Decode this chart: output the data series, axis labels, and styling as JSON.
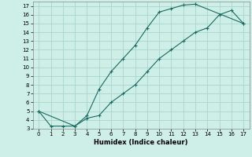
{
  "xlabel": "Humidex (Indice chaleur)",
  "background_color": "#ceeee8",
  "grid_color": "#aad4cc",
  "line_color": "#1a6b60",
  "xlim": [
    -0.5,
    17.5
  ],
  "ylim": [
    3,
    17.5
  ],
  "x_ticks": [
    0,
    1,
    2,
    3,
    4,
    5,
    6,
    7,
    8,
    9,
    10,
    11,
    12,
    13,
    14,
    15,
    16,
    17
  ],
  "y_ticks": [
    3,
    4,
    5,
    6,
    7,
    8,
    9,
    10,
    11,
    12,
    13,
    14,
    15,
    16,
    17
  ],
  "curve1_x": [
    0,
    1,
    2,
    3,
    4,
    5,
    6,
    7,
    8,
    9,
    10,
    11,
    12,
    13,
    17
  ],
  "curve1_y": [
    5,
    3.3,
    3.3,
    3.3,
    4.5,
    7.5,
    9.5,
    11,
    12.5,
    14.5,
    16.3,
    16.7,
    17.1,
    17.2,
    15
  ],
  "curve2_x": [
    0,
    3,
    4,
    5,
    6,
    7,
    8,
    9,
    10,
    11,
    12,
    13,
    14,
    15,
    16,
    17
  ],
  "curve2_y": [
    5,
    3.3,
    4.2,
    4.5,
    6,
    7,
    8,
    9.5,
    11,
    12,
    13,
    14,
    14.5,
    16.0,
    16.5,
    15
  ],
  "marker": "+"
}
